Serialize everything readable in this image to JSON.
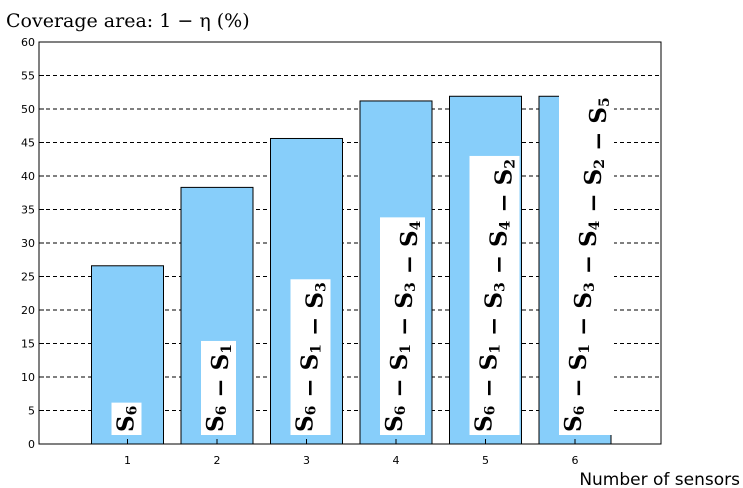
{
  "chart_data": {
    "type": "bar",
    "title": "",
    "ylabel": "Coverage area: 1 − η (%)",
    "xlabel": "Number of sensors",
    "categories": [
      "1",
      "2",
      "3",
      "4",
      "5",
      "6"
    ],
    "values": [
      26.6,
      38.3,
      45.6,
      51.2,
      51.9,
      51.9
    ],
    "bar_labels": [
      "S6",
      "S6 − S1",
      "S6 − S1 − S3",
      "S6 − S1 − S3 − S4",
      "S6 − S1 − S3 − S4 − S2",
      "S6 − S1 − S3 − S4 − S2 − S5"
    ],
    "yticks": [
      "0",
      "5",
      "10",
      "15",
      "20",
      "25",
      "30",
      "35",
      "40",
      "45",
      "50",
      "55",
      "60"
    ],
    "ylim": [
      0,
      60
    ],
    "grid": "horizontal-dashed",
    "bar_color": "#87cefa"
  }
}
